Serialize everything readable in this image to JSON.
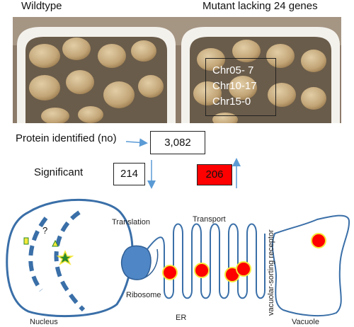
{
  "header": {
    "wildtype": "Wildtype",
    "mutant": "Mutant lacking 24 genes"
  },
  "chromosomes": [
    "Chr05- 7",
    "Chr10-17",
    "Chr15-0"
  ],
  "protein": {
    "label": "Protein identified (no)",
    "value": "3,082"
  },
  "significant": {
    "label": "Significant",
    "down_value": "214",
    "up_value": "206"
  },
  "diagram": {
    "translation": "Translation",
    "transport": "Transport",
    "ribosome": "Ribosome",
    "er": "ER",
    "nucleus": "Nucleus",
    "vacuole": "Vacuole",
    "receptor": "vacuolar-sorting receptor",
    "question": "?"
  },
  "colors": {
    "accent_red": "#ff0000",
    "membrane_blue": "#3a6fa8",
    "ribosome_blue": "#4f86c6",
    "arrow_blue": "#5b9bd5",
    "marker_yellow": "#f5e83a"
  }
}
